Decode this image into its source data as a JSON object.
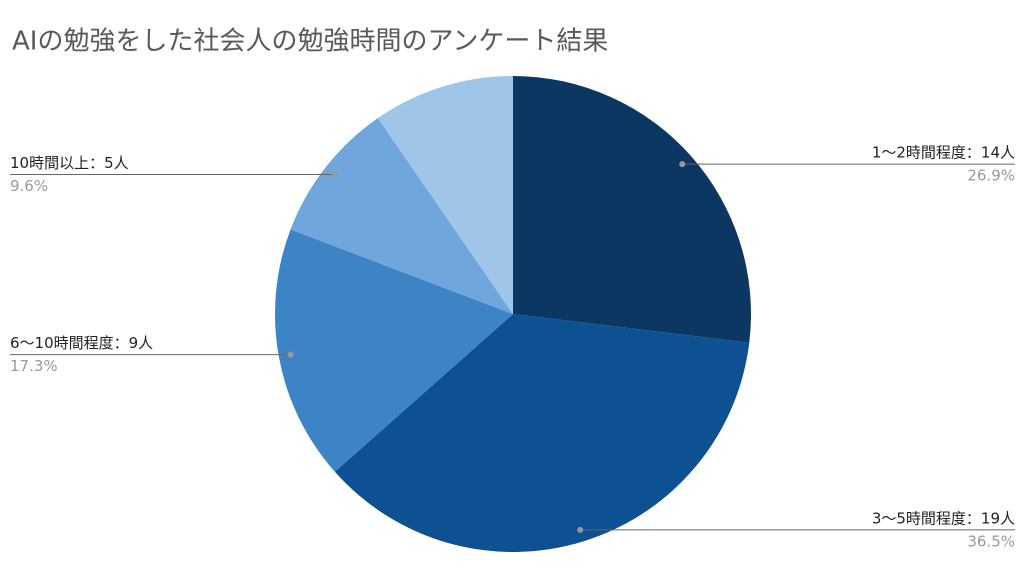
{
  "chart_data": {
    "type": "pie",
    "title": "AIの勉強をした社会人の勉強時間のアンケート結果",
    "categories": [
      "1〜2時間程度：14人",
      "3〜5時間程度：19人",
      "6〜10時間程度：9人",
      "10時間以上：5人",
      null
    ],
    "values": [
      26.9,
      36.5,
      17.3,
      9.6,
      9.6
    ],
    "value_labels": [
      "26.9%",
      "36.5%",
      "17.3%",
      "9.6%",
      null
    ],
    "colors": [
      "#0b3762",
      "#0d5192",
      "#3d84c6",
      "#6fa7dc",
      "#9fc5e8"
    ]
  }
}
